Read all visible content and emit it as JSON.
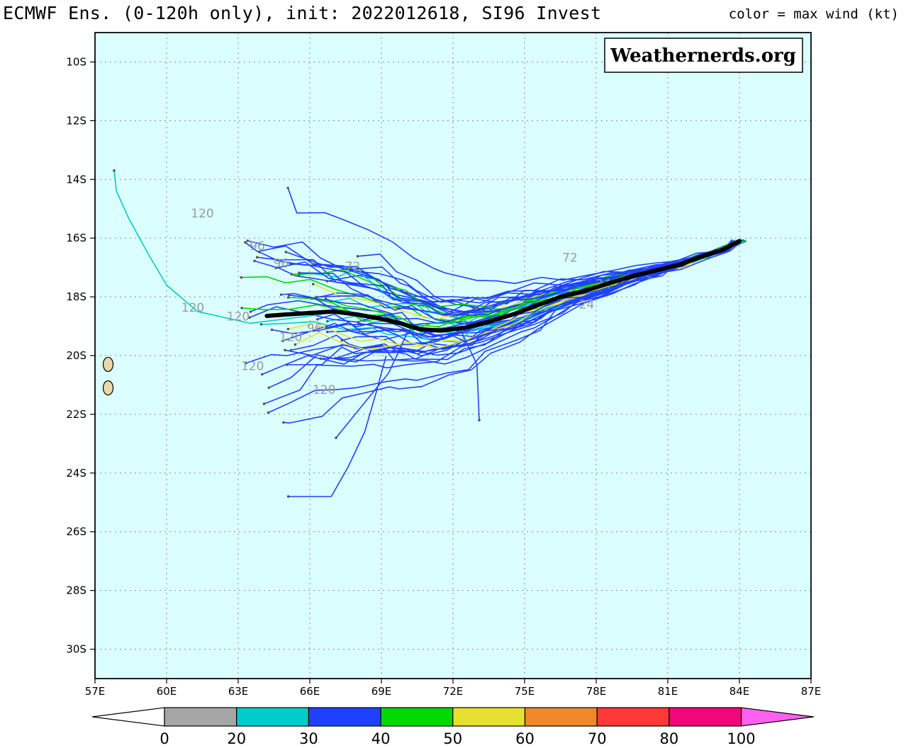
{
  "header": {
    "title": "ECMWF Ens. (0-120h only), init: 2022012618, SI96 Invest",
    "color_note": "color = max wind (kt)"
  },
  "watermark": "Weathernerds.org",
  "map": {
    "lon_range": [
      57,
      87
    ],
    "lat_range": [
      -31,
      -9
    ],
    "lon_ticks": [
      "57E",
      "60E",
      "63E",
      "66E",
      "69E",
      "72E",
      "75E",
      "78E",
      "81E",
      "84E",
      "87E"
    ],
    "lat_ticks": [
      "10S",
      "12S",
      "14S",
      "16S",
      "18S",
      "20S",
      "22S",
      "24S",
      "26S",
      "28S",
      "30S"
    ],
    "lon_tick_values": [
      57,
      60,
      63,
      66,
      69,
      72,
      75,
      78,
      81,
      84,
      87
    ],
    "lat_tick_values": [
      -10,
      -12,
      -14,
      -16,
      -18,
      -20,
      -22,
      -24,
      -26,
      -28,
      -30
    ],
    "ocean_color": "#dbffff",
    "land_color": "#e8d9a9",
    "mean_track_color": "#000000",
    "mean_track": [
      [
        84.0,
        -16.1
      ],
      [
        83.3,
        -16.4
      ],
      [
        82.5,
        -16.6
      ],
      [
        81.5,
        -16.9
      ],
      [
        80.5,
        -17.1
      ],
      [
        79.5,
        -17.3
      ],
      [
        78.5,
        -17.55
      ],
      [
        77.5,
        -17.8
      ],
      [
        76.5,
        -18.0
      ],
      [
        75.5,
        -18.3
      ],
      [
        74.5,
        -18.6
      ],
      [
        73.5,
        -18.85
      ],
      [
        72.5,
        -19.05
      ],
      [
        71.5,
        -19.15
      ],
      [
        70.6,
        -19.1
      ],
      [
        69.8,
        -18.9
      ],
      [
        69.0,
        -18.75
      ],
      [
        68.0,
        -18.6
      ],
      [
        67.0,
        -18.5
      ],
      [
        66.0,
        -18.55
      ],
      [
        65.0,
        -18.6
      ],
      [
        64.2,
        -18.65
      ]
    ],
    "annotations": [
      {
        "text": "120",
        "lon": 61.5,
        "lat": -15.3
      },
      {
        "text": "96",
        "lon": 63.8,
        "lat": -16.4
      },
      {
        "text": "96",
        "lon": 64.8,
        "lat": -17.0
      },
      {
        "text": "120",
        "lon": 61.1,
        "lat": -18.5
      },
      {
        "text": "120",
        "lon": 63.0,
        "lat": -18.8
      },
      {
        "text": "120",
        "lon": 65.2,
        "lat": -19.5
      },
      {
        "text": "120",
        "lon": 63.6,
        "lat": -20.5
      },
      {
        "text": "120",
        "lon": 66.6,
        "lat": -21.3
      },
      {
        "text": "96",
        "lon": 66.2,
        "lat": -19.2
      },
      {
        "text": "72",
        "lon": 67.8,
        "lat": -17.1
      },
      {
        "text": "72",
        "lon": 76.9,
        "lat": -16.8
      },
      {
        "text": "24",
        "lon": 78.3,
        "lat": -17.7
      },
      {
        "text": "24",
        "lon": 77.6,
        "lat": -18.4
      }
    ]
  },
  "islands": [
    {
      "name": "reunion",
      "lon": 57.55,
      "lat": -21.1
    },
    {
      "name": "mauritius",
      "lon": 57.55,
      "lat": -20.3
    }
  ],
  "colorbar": {
    "labels": [
      "0",
      "20",
      "30",
      "40",
      "50",
      "60",
      "70",
      "80",
      "100"
    ],
    "colors": [
      "#ffffff",
      "#a6a6a6",
      "#00cccc",
      "#2040ff",
      "#00d800",
      "#e6e030",
      "#f08828",
      "#ff3838",
      "#f0087a",
      "#ff60f0"
    ]
  }
}
